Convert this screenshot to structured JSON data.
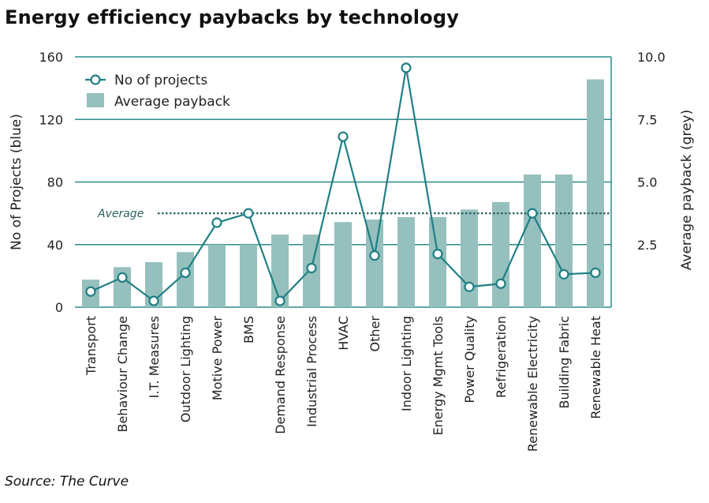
{
  "title": "Energy efficiency paybacks by technology",
  "source": "Source: The Curve",
  "chart_data": {
    "type": "bar",
    "categories": [
      "Transport",
      "Behaviour Change",
      "I.T. Measures",
      "Outdoor Lighting",
      "Motive Power",
      "BMS",
      "Demand Response",
      "Industrial Process",
      "HVAC",
      "Other",
      "Indoor Lighting",
      "Energy Mgmt Tools",
      "Power Quality",
      "Refrigeration",
      "Renewable Electricity",
      "Building Fabric",
      "Renewable Heat"
    ],
    "series": [
      {
        "name": "Average payback",
        "kind": "bar",
        "axis": "right",
        "values": [
          1.1,
          1.6,
          1.8,
          2.2,
          2.5,
          2.5,
          2.9,
          2.9,
          3.4,
          3.5,
          3.6,
          3.6,
          3.9,
          4.2,
          5.3,
          5.3,
          9.1
        ]
      },
      {
        "name": "No of projects",
        "kind": "line",
        "axis": "left",
        "values": [
          10,
          19,
          4,
          22,
          54,
          60,
          4,
          25,
          109,
          33,
          153,
          34,
          13,
          15,
          60,
          21,
          22
        ]
      }
    ],
    "ylabel": "No of Projects (blue)",
    "ylabel_right": "Average payback (grey)",
    "ylim": [
      0,
      160
    ],
    "ylim_right": [
      0,
      10
    ],
    "yticks": [
      "0",
      "40",
      "80",
      "120",
      "160"
    ],
    "yticks_right": [
      "2.5",
      "5.0",
      "7.5",
      "10.0"
    ],
    "average": {
      "label": "Average",
      "value": 60
    },
    "legend_position": "top-left",
    "grid": true,
    "colors": {
      "bar": "#95c0bd",
      "line": "#1f7f84",
      "grid": "#2b8a8e",
      "average": "#2c5f5f"
    }
  }
}
